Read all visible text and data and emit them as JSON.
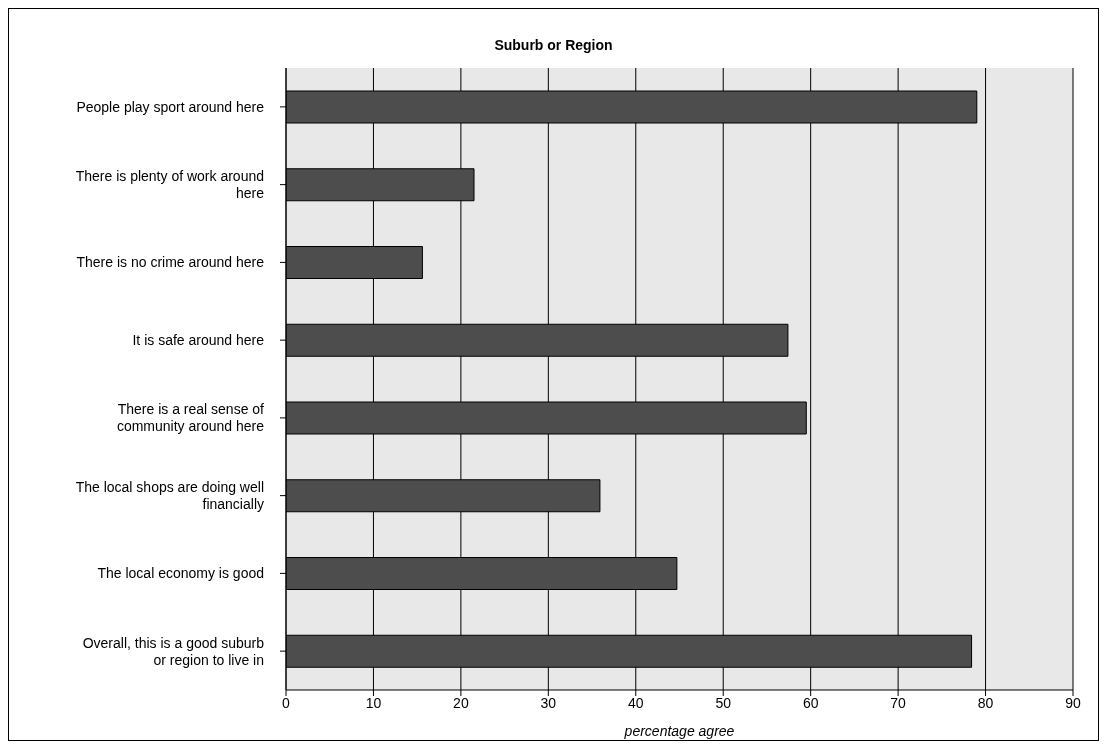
{
  "chart_data": {
    "type": "bar",
    "orientation": "horizontal",
    "title": "Suburb or Region",
    "xlabel": "percentage agree",
    "categories": [
      "People play sport around here",
      "There is plenty of work around here",
      "There is no crime around here",
      "It is safe around here",
      "There is a real sense of community around here",
      "The local shops are doing well financially",
      "The local economy is good",
      "Overall, this is a good suburb or region to live in"
    ],
    "values": [
      79,
      21.5,
      15.6,
      57.4,
      59.5,
      35.9,
      44.7,
      78.4
    ],
    "color": "#4d4d4d",
    "xlim": [
      0,
      90
    ],
    "xticks": [
      0,
      10,
      20,
      30,
      40,
      50,
      60,
      70,
      80,
      90
    ],
    "grid": "x"
  }
}
